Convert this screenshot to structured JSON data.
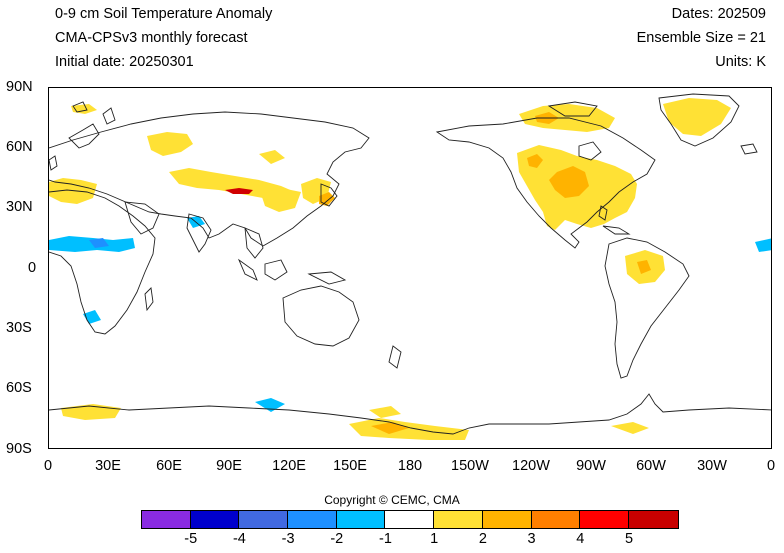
{
  "header": {
    "title": "0-9 cm Soil Temperature Anomaly",
    "model": "CMA-CPSv3 monthly forecast",
    "init_date": "Initial date: 20250301",
    "dates": "Dates: 202509",
    "ensemble": "Ensemble Size = 21",
    "units": "Units: K"
  },
  "axes": {
    "lat_labels": [
      "90N",
      "60N",
      "30N",
      "0",
      "30S",
      "60S",
      "90S"
    ],
    "lon_labels": [
      "0",
      "30E",
      "60E",
      "90E",
      "120E",
      "150E",
      "180",
      "150W",
      "120W",
      "90W",
      "60W",
      "30W",
      "0"
    ]
  },
  "copyright": "Copyright © CEMC, CMA",
  "colorbar": {
    "colors": [
      "#8a2be2",
      "#0000cd",
      "#4169e1",
      "#1e90ff",
      "#00bfff",
      "#ffffff",
      "#ffe135",
      "#ffb300",
      "#ff7f00",
      "#ff0000",
      "#c80000"
    ],
    "labels": [
      "-5",
      "-4",
      "-3",
      "-2",
      "-1",
      "1",
      "2",
      "3",
      "4",
      "5"
    ]
  },
  "anomaly_colors": {
    "weak_warm": "#ffe135",
    "moderate_warm": "#ffb300",
    "strong_warm": "#ff7f00",
    "very_strong_warm": "#d00000",
    "weak_cold": "#00bfff",
    "moderate_cold": "#1e90ff"
  }
}
